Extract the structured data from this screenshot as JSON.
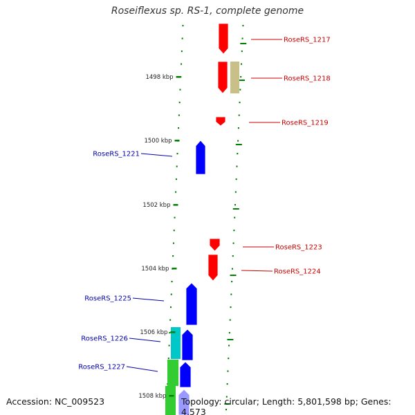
{
  "title": "Roseiflexus sp. RS-1, complete genome",
  "footer": {
    "accession": "Accession: NC_009523",
    "topology": "Topology: circular; Length: 5,801,598 bp; Genes: 4,573"
  },
  "colors": {
    "backbone": "#808080",
    "forward_gene": "#ff0000",
    "reverse_gene": "#0000ff",
    "tick": "#008000",
    "tan_feature": "#c8c088",
    "cyan_feature": "#00c8c8",
    "green_feature": "#33cc33",
    "forward_label": "#cc0000",
    "reverse_label": "#0000aa"
  },
  "ruler_labels": [
    "1498 kbp",
    "1500 kbp",
    "1502 kbp",
    "1504 kbp",
    "1506 kbp",
    "1508 kbp"
  ],
  "gene_labels": {
    "forward": [
      "RoseRS_1217",
      "RoseRS_1218",
      "RoseRS_1219",
      "RoseRS_1223",
      "RoseRS_1224"
    ],
    "reverse": [
      "RoseRS_1221",
      "RoseRS_1225",
      "RoseRS_1226",
      "RoseRS_1227"
    ]
  }
}
